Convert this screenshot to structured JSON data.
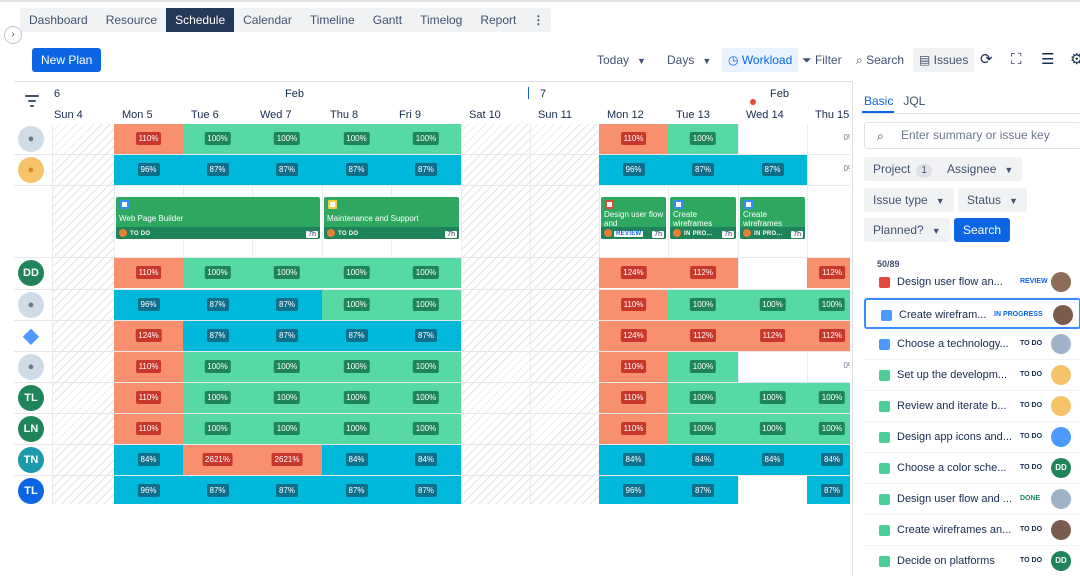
{
  "nav": {
    "tabs": [
      "Dashboard",
      "Resource",
      "Schedule",
      "Calendar",
      "Timeline",
      "Gantt",
      "Timelog",
      "Report"
    ],
    "active_tab": "Schedule",
    "more": "⋮",
    "sidebar_toggle": "›"
  },
  "toolbar": {
    "new_plan": "New Plan",
    "today": "Today",
    "days": "Days",
    "workload": "Workload",
    "filter": "Filter",
    "search": "Search",
    "issues": "Issues"
  },
  "timeline": {
    "weeks": [
      {
        "num": "6",
        "month": "Feb"
      },
      {
        "num": "7",
        "month": "Feb"
      }
    ],
    "days": [
      "Sun 4",
      "Mon 5",
      "Tue 6",
      "Wed 7",
      "Thu 8",
      "Fri 9",
      "Sat 10",
      "Sun 11",
      "Mon 12",
      "Tue 13",
      "Wed 14",
      "Thu 15"
    ],
    "weekend_days": [
      0,
      6,
      7
    ],
    "today_index": 10
  },
  "rows": [
    {
      "avatar": {
        "type": "photo",
        "initials": ""
      },
      "cells": [
        null,
        "r:110%",
        "g:100%",
        "g:100%",
        "g:100%",
        "g:100%",
        null,
        null,
        "r:110%",
        "g:100%",
        null,
        "p:0%"
      ]
    },
    {
      "avatar": {
        "type": "photo2",
        "initials": ""
      },
      "cells": [
        null,
        "b:96%",
        "b:87%",
        "b:87%",
        "b:87%",
        "b:87%",
        null,
        null,
        "b:96%",
        "b:87%",
        "b:87%",
        "p:0%"
      ]
    },
    {
      "avatar": {
        "type": "initials",
        "initials": "DD",
        "color": "#1f845a"
      },
      "cells": [
        null,
        "r:110%",
        "g:100%",
        "g:100%",
        "g:100%",
        "g:100%",
        null,
        null,
        "r:124%",
        "r:112%",
        null,
        "r:112%"
      ]
    },
    {
      "avatar": {
        "type": "photo",
        "initials": ""
      },
      "cells": [
        null,
        "b:96%",
        "b:87%",
        "b:87%",
        "g:100%",
        "g:100%",
        null,
        null,
        "r:110%",
        "g:100%",
        "g:100%",
        "g:100%"
      ]
    },
    {
      "avatar": {
        "type": "logo",
        "initials": ""
      },
      "cells": [
        null,
        "r:124%",
        "b:87%",
        "b:87%",
        "b:87%",
        "b:87%",
        null,
        null,
        "r:124%",
        "r:112%",
        "r:112%",
        "r:112%"
      ]
    },
    {
      "avatar": {
        "type": "photo",
        "initials": ""
      },
      "cells": [
        null,
        "r:110%",
        "g:100%",
        "g:100%",
        "g:100%",
        "g:100%",
        null,
        null,
        "r:110%",
        "g:100%",
        null,
        "p:0%"
      ]
    },
    {
      "avatar": {
        "type": "initials",
        "initials": "TL",
        "color": "#1f845a"
      },
      "cells": [
        null,
        "r:110%",
        "g:100%",
        "g:100%",
        "g:100%",
        "g:100%",
        null,
        null,
        "r:110%",
        "g:100%",
        "g:100%",
        "g:100%"
      ]
    },
    {
      "avatar": {
        "type": "initials",
        "initials": "LN",
        "color": "#1f845a"
      },
      "cells": [
        null,
        "r:110%",
        "g:100%",
        "g:100%",
        "g:100%",
        "g:100%",
        null,
        null,
        "r:110%",
        "g:100%",
        "g:100%",
        "g:100%"
      ]
    },
    {
      "avatar": {
        "type": "initials",
        "initials": "TN",
        "color": "#1d9aaa"
      },
      "cells": [
        null,
        "b:84%",
        "r:2621%",
        "r:2621%",
        "b:84%",
        "b:84%",
        null,
        null,
        "b:84%",
        "b:84%",
        "b:84%",
        "b:84%"
      ]
    },
    {
      "avatar": {
        "type": "initials",
        "initials": "TL",
        "color": "#0c66e4"
      },
      "cells": [
        null,
        "b:96%",
        "b:87%",
        "b:87%",
        "b:87%",
        "b:87%",
        null,
        null,
        "b:96%",
        "b:87%",
        null,
        "b:87%"
      ]
    }
  ],
  "tasks": [
    {
      "title": "Web Page Builder",
      "status": "TO DO",
      "duration": "7h",
      "check": "blue",
      "start_day": 1,
      "end_day": 4
    },
    {
      "title": "Maintenance and Support",
      "status": "TO DO",
      "duration": "7h",
      "check": "yel",
      "start_day": 4,
      "end_day": 6
    },
    {
      "title": "Design user flow and",
      "status": "REVIEW",
      "duration": "7h",
      "check": "red",
      "start_day": 8,
      "end_day": 9
    },
    {
      "title": "Create wireframes",
      "status": "IN PRO...",
      "duration": "7h",
      "check": "blue",
      "start_day": 9,
      "end_day": 10
    },
    {
      "title": "Create wireframes",
      "status": "IN PRO...",
      "duration": "7h",
      "check": "blue",
      "start_day": 10,
      "end_day": 11
    }
  ],
  "panel": {
    "tabs": [
      "Basic",
      "JQL"
    ],
    "active_tab": "Basic",
    "search_placeholder": "Enter summary or issue key",
    "filters": {
      "project": "Project",
      "project_count": "1",
      "assignee": "Assignee",
      "issue_type": "Issue type",
      "status": "Status",
      "planned": "Planned?",
      "search_button": "Search"
    },
    "count": "50/89",
    "issues": [
      {
        "title": "Design user flow an...",
        "status": "REVIEW",
        "status_class": "review",
        "icon": "red",
        "avatar": {
          "initials": "",
          "color": "#8c6d5a"
        },
        "selected": false
      },
      {
        "title": "Create wirefram...",
        "status": "IN PROGRESS",
        "status_class": "inprogress",
        "icon": "blue",
        "avatar": {
          "initials": "",
          "color": "#7a5c4f"
        },
        "selected": true
      },
      {
        "title": "Choose a technology...",
        "status": "TO DO",
        "status_class": "todo",
        "icon": "blue",
        "avatar": {
          "initials": "",
          "color": "#9fb3c8"
        },
        "selected": false
      },
      {
        "title": "Set up the developm...",
        "status": "TO DO",
        "status_class": "todo",
        "icon": "green",
        "avatar": {
          "initials": "",
          "color": "#f6c36b"
        },
        "selected": false
      },
      {
        "title": "Review and iterate b...",
        "status": "TO DO",
        "status_class": "todo",
        "icon": "green",
        "avatar": {
          "initials": "",
          "color": "#f6c36b"
        },
        "selected": false
      },
      {
        "title": "Design app icons and...",
        "status": "TO DO",
        "status_class": "todo",
        "icon": "green",
        "avatar": {
          "initials": "",
          "color": "#4c9aff"
        },
        "selected": false
      },
      {
        "title": "Choose a color sche...",
        "status": "TO DO",
        "status_class": "todo",
        "icon": "green",
        "avatar": {
          "initials": "DD",
          "color": "#1f845a"
        },
        "selected": false
      },
      {
        "title": "Design user flow and ...",
        "status": "DONE",
        "status_class": "done",
        "icon": "green",
        "avatar": {
          "initials": "",
          "color": "#9fb3c8"
        },
        "selected": false
      },
      {
        "title": "Create wireframes an...",
        "status": "TO DO",
        "status_class": "todo",
        "icon": "green",
        "avatar": {
          "initials": "",
          "color": "#7a5c4f"
        },
        "selected": false
      },
      {
        "title": "Decide on platforms",
        "status": "TO DO",
        "status_class": "todo",
        "icon": "green",
        "avatar": {
          "initials": "DD",
          "color": "#1f845a"
        },
        "selected": false
      }
    ]
  },
  "colors": {
    "over": "#f88f6e",
    "full": "#57d9a3",
    "under": "#00b8d9",
    "accent": "#0c66e4"
  }
}
